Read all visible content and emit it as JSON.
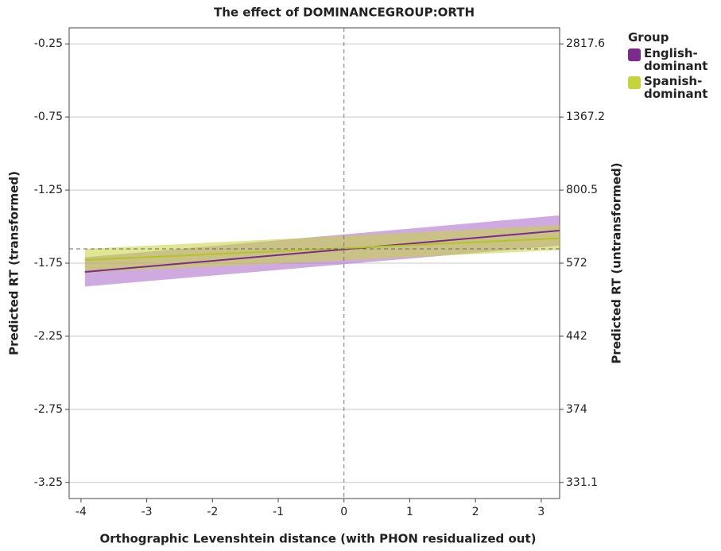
{
  "chart_data": {
    "type": "line",
    "title": "The effect of DOMINANCEGROUP:ORTH",
    "xlabel": "Orthographic Levenshtein distance (with PHON residualized out)",
    "ylabel": "Predicted RT (transformed)",
    "y2label": "Predicted RT (untransformed)",
    "legend_title": "Group",
    "x": [
      -3.94,
      3.28
    ],
    "series": [
      {
        "name": "English-dominant",
        "color": "#7b2a8e",
        "band_color": "#a865c9",
        "values": [
          -1.81,
          -1.527
        ],
        "lower": [
          -1.91,
          -1.63
        ],
        "upper": [
          -1.71,
          -1.423
        ]
      },
      {
        "name": "Spanish-dominant",
        "color": "#b5c424",
        "band_color": "#c5d43a",
        "values": [
          -1.728,
          -1.58
        ],
        "lower": [
          -1.815,
          -1.66
        ],
        "upper": [
          -1.652,
          -1.49
        ]
      }
    ],
    "xlim": [
      -4.18,
      3.28
    ],
    "xticks": [
      -4,
      -3,
      -2,
      -1,
      0,
      1,
      2,
      3
    ],
    "ylim": [
      -3.36,
      -0.14
    ],
    "yticks": [
      -0.25,
      -0.75,
      -1.25,
      -1.75,
      -2.25,
      -2.75,
      -3.25
    ],
    "y2ticks": [
      2817.6,
      1367.2,
      800.5,
      572,
      442,
      374,
      331.1
    ],
    "reference_x": 0,
    "reference_y": -1.652,
    "grid": true
  }
}
